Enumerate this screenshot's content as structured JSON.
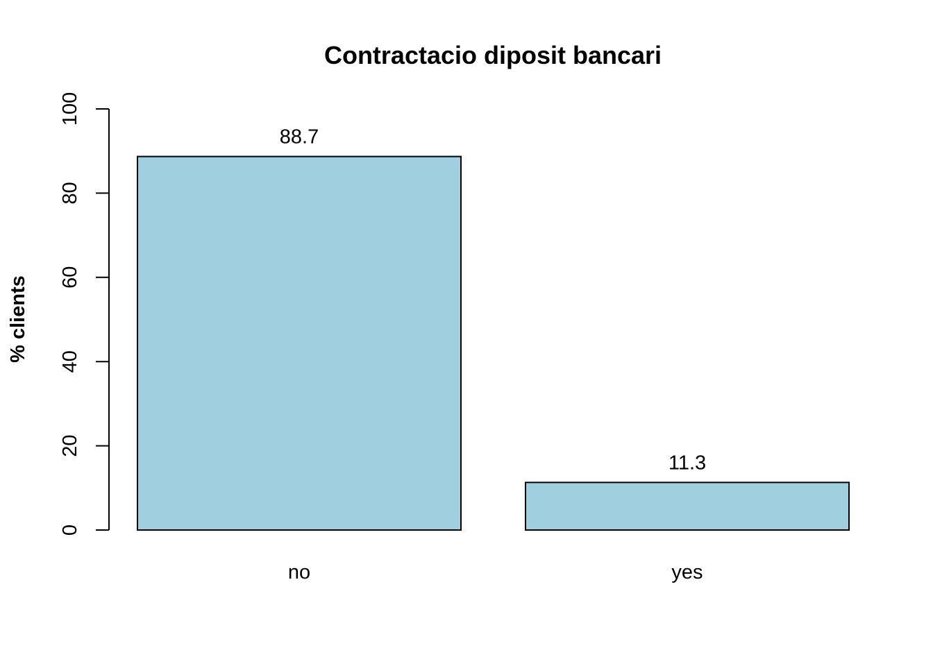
{
  "chart_data": {
    "type": "bar",
    "title": "Contractacio diposit bancari",
    "xlabel": "",
    "ylabel": "% clients",
    "categories": [
      "no",
      "yes"
    ],
    "values": [
      88.7,
      11.3
    ],
    "value_labels": [
      "88.7",
      "11.3"
    ],
    "ylim": [
      0,
      100
    ],
    "yticks": [
      0,
      20,
      40,
      60,
      80,
      100
    ],
    "ytick_labels": [
      "0",
      "20",
      "40",
      "60",
      "80",
      "100"
    ],
    "grid": false,
    "legend": "none",
    "colors": {
      "bar_fill": "#a0cfe0",
      "bar_stroke": "#000000",
      "axis": "#000000",
      "text": "#000000"
    }
  }
}
